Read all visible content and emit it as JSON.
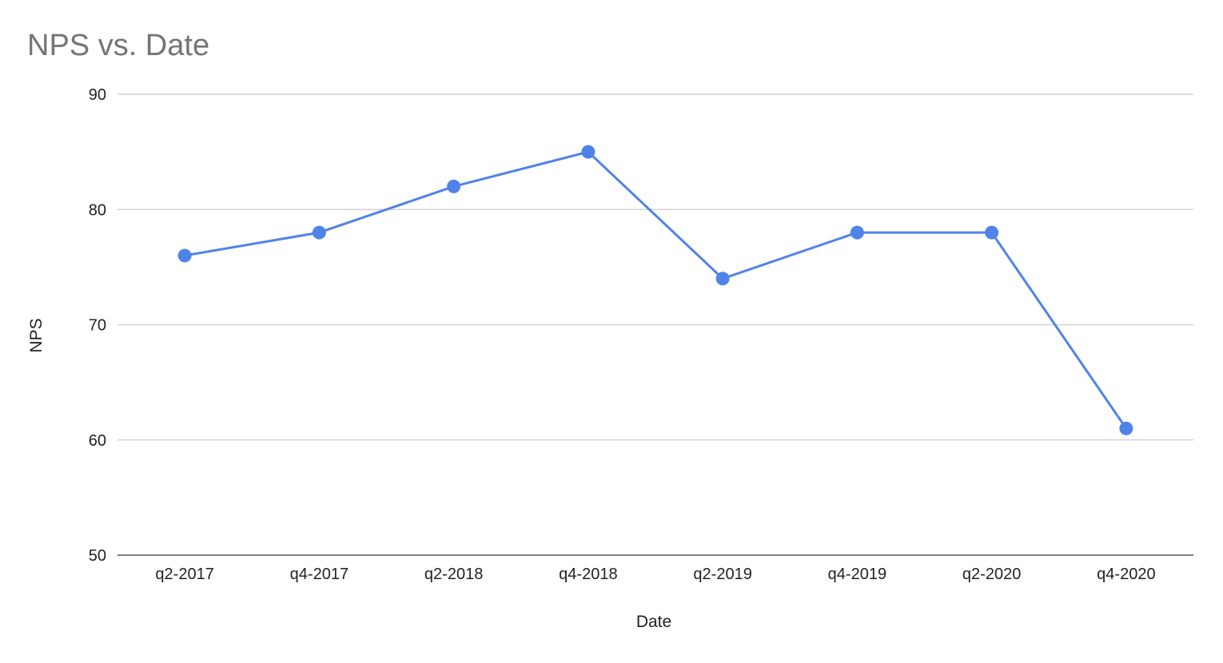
{
  "chart_data": {
    "type": "line",
    "title": "NPS vs. Date",
    "xlabel": "Date",
    "ylabel": "NPS",
    "categories": [
      "q2-2017",
      "q4-2017",
      "q2-2018",
      "q4-2018",
      "q2-2019",
      "q4-2019",
      "q2-2020",
      "q4-2020"
    ],
    "series": [
      {
        "values": [
          76,
          78,
          82,
          85,
          74,
          78,
          78,
          61
        ],
        "color": "#5083e8"
      }
    ],
    "ylim": [
      50,
      90
    ],
    "yticks": [
      50,
      60,
      70,
      80,
      90
    ],
    "grid": true,
    "legend": "none",
    "gridline_color": "#cccccc",
    "baseline_color": "#333333"
  }
}
